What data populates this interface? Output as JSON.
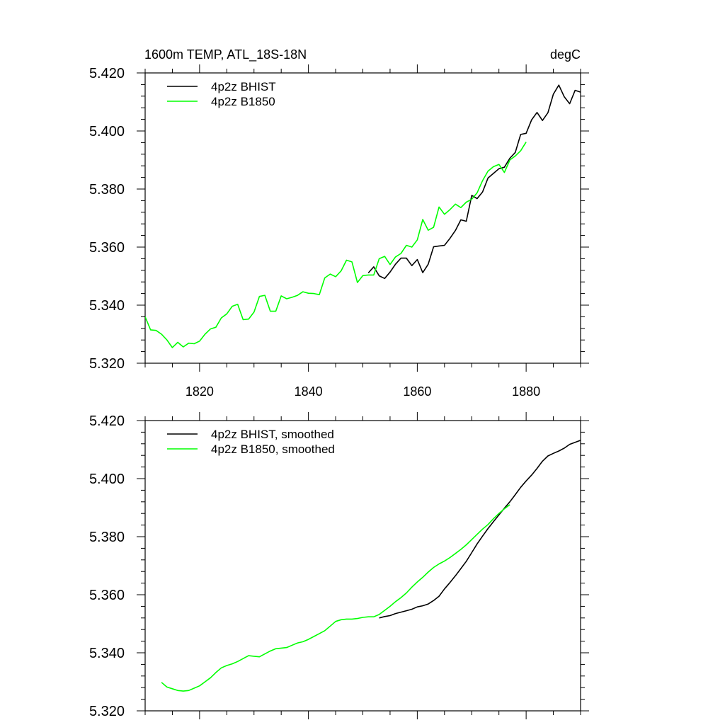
{
  "chart_data": [
    {
      "type": "line",
      "title_left": "1600m TEMP, ATL_18S-18N",
      "title_right": "degC",
      "xlim": [
        1810,
        1890
      ],
      "ylim": [
        5.32,
        5.42
      ],
      "xticks": [
        "1820",
        "1840",
        "1860",
        "1880"
      ],
      "xtick_values": [
        1820,
        1840,
        1860,
        1880
      ],
      "yticks": [
        "5.320",
        "5.340",
        "5.360",
        "5.380",
        "5.400",
        "5.420"
      ],
      "ytick_values": [
        5.32,
        5.34,
        5.36,
        5.38,
        5.4,
        5.42
      ],
      "grid": false,
      "legend_position": "top-left",
      "series": [
        {
          "name": "4p2z BHIST",
          "color": "#000000",
          "x": [
            1851,
            1852,
            1853,
            1854,
            1855,
            1856,
            1857,
            1858,
            1859,
            1860,
            1861,
            1862,
            1863,
            1864,
            1865,
            1866,
            1867,
            1868,
            1869,
            1870,
            1871,
            1872,
            1873,
            1874,
            1875,
            1876,
            1877,
            1878,
            1879,
            1880,
            1881,
            1882,
            1883,
            1884,
            1885,
            1886,
            1887,
            1888,
            1889,
            1890
          ],
          "y": [
            5.3511,
            5.3532,
            5.3501,
            5.3492,
            5.3514,
            5.3541,
            5.3562,
            5.3562,
            5.3536,
            5.3557,
            5.3512,
            5.3541,
            5.3601,
            5.3604,
            5.3606,
            5.363,
            5.3657,
            5.3694,
            5.3689,
            5.3778,
            5.3767,
            5.379,
            5.3838,
            5.3854,
            5.387,
            5.3875,
            5.3906,
            5.3926,
            5.3988,
            5.3992,
            5.4038,
            5.4064,
            5.4036,
            5.4063,
            5.4127,
            5.4158,
            5.4118,
            5.4094,
            5.414,
            5.4134
          ]
        },
        {
          "name": "4p2z B1850",
          "color": "#00ff00",
          "x": [
            1810,
            1811,
            1812,
            1813,
            1814,
            1815,
            1816,
            1817,
            1818,
            1819,
            1820,
            1821,
            1822,
            1823,
            1824,
            1825,
            1826,
            1827,
            1828,
            1829,
            1830,
            1831,
            1832,
            1833,
            1834,
            1835,
            1836,
            1837,
            1838,
            1839,
            1840,
            1841,
            1842,
            1843,
            1844,
            1845,
            1846,
            1847,
            1848,
            1849,
            1850,
            1851,
            1852,
            1853,
            1854,
            1855,
            1856,
            1857,
            1858,
            1859,
            1860,
            1861,
            1862,
            1863,
            1864,
            1865,
            1866,
            1867,
            1868,
            1869,
            1870,
            1871,
            1872,
            1873,
            1874,
            1875,
            1876,
            1877,
            1878,
            1879,
            1880
          ],
          "y": [
            5.336,
            5.3315,
            5.3313,
            5.33,
            5.328,
            5.3254,
            5.3272,
            5.3256,
            5.3269,
            5.3267,
            5.3276,
            5.33,
            5.3318,
            5.3324,
            5.3356,
            5.337,
            5.3396,
            5.3403,
            5.335,
            5.3352,
            5.3376,
            5.343,
            5.3434,
            5.3379,
            5.3379,
            5.3432,
            5.3422,
            5.3427,
            5.3434,
            5.3446,
            5.3441,
            5.344,
            5.3436,
            5.3494,
            5.3507,
            5.3498,
            5.3518,
            5.3555,
            5.3549,
            5.3478,
            5.3502,
            5.3504,
            5.3504,
            5.356,
            5.3568,
            5.354,
            5.3566,
            5.3578,
            5.3606,
            5.36,
            5.3625,
            5.3695,
            5.3658,
            5.3668,
            5.3738,
            5.3713,
            5.3729,
            5.3748,
            5.3736,
            5.3755,
            5.3765,
            5.3787,
            5.3829,
            5.3862,
            5.3877,
            5.3885,
            5.3857,
            5.39,
            5.3914,
            5.3932,
            5.3962
          ]
        }
      ]
    },
    {
      "type": "line",
      "xlim": [
        1810,
        1890
      ],
      "ylim": [
        5.32,
        5.42
      ],
      "xtick_values": [
        1820,
        1840,
        1860,
        1880
      ],
      "yticks": [
        "5.320",
        "5.340",
        "5.360",
        "5.380",
        "5.400",
        "5.420"
      ],
      "ytick_values": [
        5.32,
        5.34,
        5.36,
        5.38,
        5.4,
        5.42
      ],
      "grid": false,
      "legend_position": "top-left",
      "series": [
        {
          "name": "4p2z BHIST, smoothed",
          "color": "#000000",
          "x": [
            1853,
            1854,
            1855,
            1856,
            1857,
            1858,
            1859,
            1860,
            1861,
            1862,
            1863,
            1864,
            1865,
            1866,
            1867,
            1868,
            1869,
            1870,
            1871,
            1872,
            1873,
            1874,
            1875,
            1876,
            1877,
            1878,
            1879,
            1880,
            1881,
            1882,
            1883,
            1884,
            1885,
            1886,
            1887,
            1888,
            1889,
            1890,
            1891,
            1892
          ],
          "y": [
            5.352,
            5.3525,
            5.3528,
            5.3535,
            5.354,
            5.3545,
            5.355,
            5.3558,
            5.3562,
            5.3568,
            5.358,
            5.3595,
            5.362,
            5.3642,
            5.3665,
            5.369,
            5.3715,
            5.3745,
            5.3775,
            5.3802,
            5.3828,
            5.3852,
            5.3875,
            5.3898,
            5.392,
            5.3945,
            5.397,
            5.3992,
            5.4012,
            5.4035,
            5.406,
            5.4078,
            5.4087,
            5.4095,
            5.4105,
            5.4118,
            5.4125,
            5.4132,
            5.414,
            5.4145
          ]
        },
        {
          "name": "4p2z B1850, smoothed",
          "color": "#00ff00",
          "x": [
            1813,
            1814,
            1815,
            1816,
            1817,
            1818,
            1819,
            1820,
            1821,
            1822,
            1823,
            1824,
            1825,
            1826,
            1827,
            1828,
            1829,
            1830,
            1831,
            1832,
            1833,
            1834,
            1835,
            1836,
            1837,
            1838,
            1839,
            1840,
            1841,
            1842,
            1843,
            1844,
            1845,
            1846,
            1847,
            1848,
            1849,
            1850,
            1851,
            1852,
            1853,
            1854,
            1855,
            1856,
            1857,
            1858,
            1859,
            1860,
            1861,
            1862,
            1863,
            1864,
            1865,
            1866,
            1867,
            1868,
            1869,
            1870,
            1871,
            1872,
            1873,
            1874,
            1875,
            1876,
            1877
          ],
          "y": [
            5.3298,
            5.3282,
            5.3276,
            5.327,
            5.3268,
            5.327,
            5.3278,
            5.3286,
            5.33,
            5.3314,
            5.3332,
            5.3348,
            5.3356,
            5.3362,
            5.337,
            5.338,
            5.339,
            5.3388,
            5.3386,
            5.3396,
            5.3406,
            5.3414,
            5.3416,
            5.3418,
            5.3426,
            5.3434,
            5.3438,
            5.3446,
            5.3456,
            5.3466,
            5.3476,
            5.3492,
            5.3508,
            5.3514,
            5.3516,
            5.3516,
            5.3518,
            5.3522,
            5.3524,
            5.3524,
            5.3532,
            5.3546,
            5.356,
            5.3576,
            5.359,
            5.3606,
            5.3626,
            5.3644,
            5.366,
            5.3678,
            5.3694,
            5.3706,
            5.3716,
            5.3728,
            5.3742,
            5.3756,
            5.3772,
            5.379,
            5.3808,
            5.3826,
            5.3842,
            5.3862,
            5.388,
            5.3896,
            5.391
          ]
        }
      ]
    }
  ]
}
